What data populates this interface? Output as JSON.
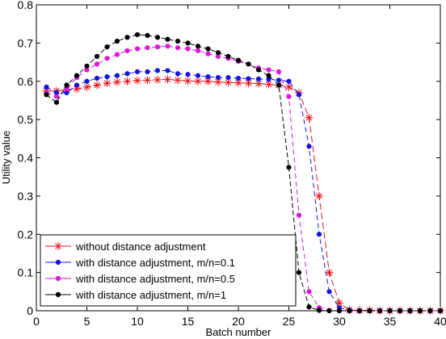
{
  "chart_data": {
    "type": "line",
    "title": "",
    "xlabel": "Batch number",
    "ylabel": "Utility value",
    "xlim": [
      0,
      40
    ],
    "ylim": [
      0,
      0.8
    ],
    "xticks": [
      "0",
      "5",
      "10",
      "15",
      "20",
      "25",
      "30",
      "35",
      "40"
    ],
    "yticks": [
      "0",
      "0.1",
      "0.2",
      "0.3",
      "0.4",
      "0.5",
      "0.6",
      "0.7",
      "0.8"
    ],
    "grid": false,
    "legend_position": "bottom-left",
    "x": [
      1,
      2,
      3,
      4,
      5,
      6,
      7,
      8,
      9,
      10,
      11,
      12,
      13,
      14,
      15,
      16,
      17,
      18,
      19,
      20,
      21,
      22,
      23,
      24,
      25,
      26,
      27,
      28,
      29,
      30,
      31,
      32,
      33,
      34,
      35,
      36,
      37,
      38,
      39,
      40
    ],
    "series": [
      {
        "name": "without distance adjustment",
        "color": "#e8141a",
        "marker": "star",
        "dash": "8,4",
        "values": [
          0.575,
          0.575,
          0.578,
          0.58,
          0.585,
          0.59,
          0.595,
          0.598,
          0.6,
          0.602,
          0.603,
          0.604,
          0.605,
          0.603,
          0.601,
          0.6,
          0.6,
          0.598,
          0.597,
          0.596,
          0.595,
          0.594,
          0.592,
          0.59,
          0.585,
          0.57,
          0.505,
          0.3,
          0.1,
          0.02,
          0.002,
          0.001,
          0.001,
          0.0,
          0.0,
          0.0,
          0.0,
          0.0,
          0.0,
          0.0
        ]
      },
      {
        "name": "with distance adjustment, m/n=0.1",
        "color": "#1414e0",
        "marker": "dot",
        "dash": "6,4",
        "values": [
          0.585,
          0.57,
          0.57,
          0.59,
          0.6,
          0.608,
          0.612,
          0.615,
          0.62,
          0.625,
          0.625,
          0.628,
          0.628,
          0.62,
          0.618,
          0.615,
          0.612,
          0.61,
          0.61,
          0.608,
          0.607,
          0.606,
          0.605,
          0.603,
          0.6,
          0.565,
          0.43,
          0.2,
          0.05,
          0.008,
          0.002,
          0.0,
          0.0,
          0.0,
          0.0,
          0.0,
          0.0,
          0.0,
          0.0,
          0.0
        ]
      },
      {
        "name": "with distance adjustment, m/n=0.5",
        "color": "#e014e0",
        "marker": "dot",
        "dash": "6,4",
        "values": [
          0.57,
          0.56,
          0.58,
          0.61,
          0.63,
          0.645,
          0.66,
          0.67,
          0.68,
          0.685,
          0.688,
          0.69,
          0.692,
          0.688,
          0.685,
          0.68,
          0.672,
          0.665,
          0.66,
          0.652,
          0.645,
          0.635,
          0.63,
          0.625,
          0.56,
          0.25,
          0.05,
          0.008,
          0.001,
          0.0,
          0.0,
          0.0,
          0.0,
          0.0,
          0.0,
          0.0,
          0.0,
          0.0,
          0.0,
          0.0
        ]
      },
      {
        "name": "with distance adjustment, m/n=1",
        "color": "#000000",
        "marker": "dot",
        "dash": "6,3",
        "values": [
          0.565,
          0.545,
          0.59,
          0.615,
          0.64,
          0.665,
          0.69,
          0.705,
          0.715,
          0.722,
          0.72,
          0.715,
          0.71,
          0.705,
          0.7,
          0.692,
          0.685,
          0.675,
          0.665,
          0.655,
          0.645,
          0.63,
          0.615,
          0.59,
          0.375,
          0.1,
          0.01,
          0.001,
          0.0,
          0.0,
          0.0,
          0.0,
          0.0,
          0.0,
          0.0,
          0.0,
          0.0,
          0.0,
          0.0,
          0.0
        ]
      }
    ]
  }
}
